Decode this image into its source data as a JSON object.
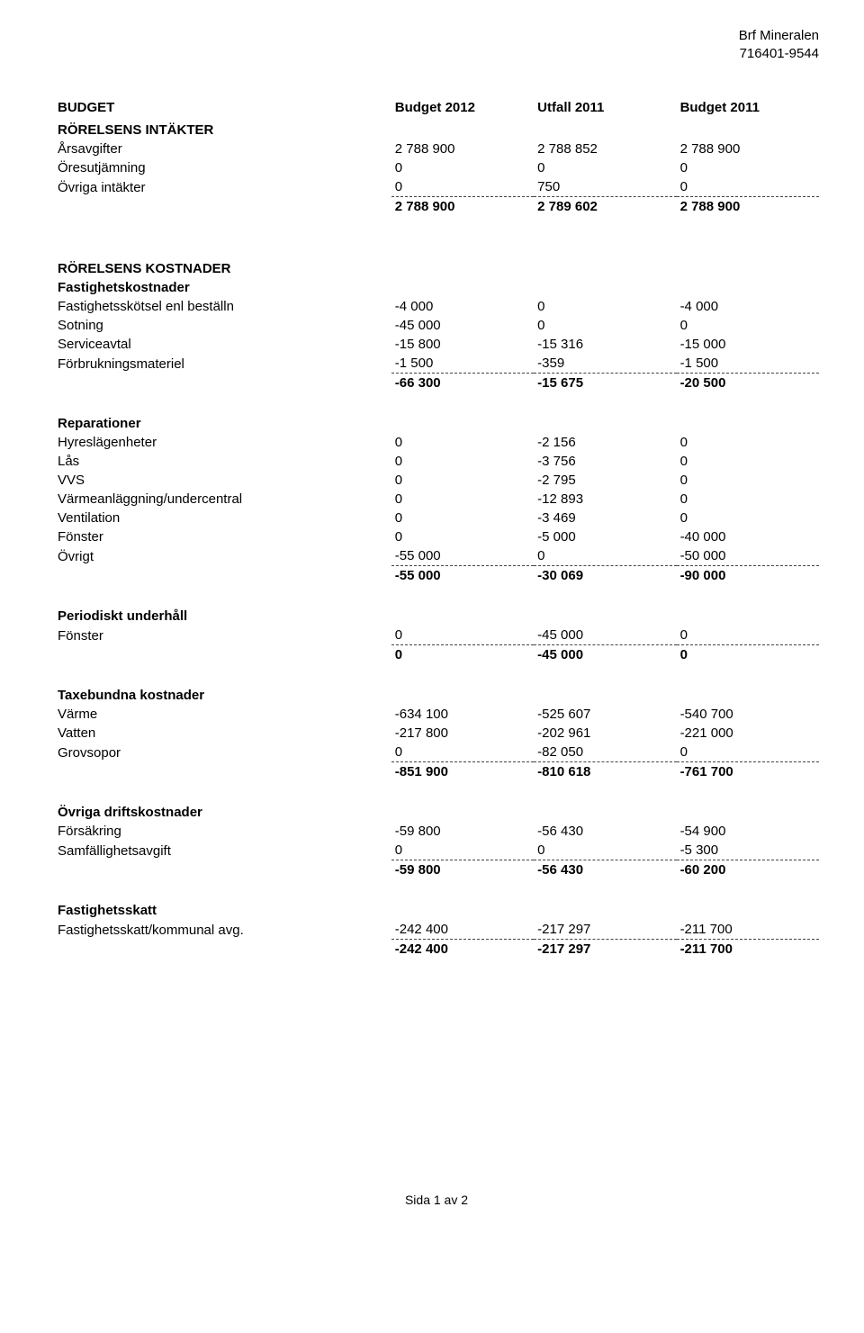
{
  "header": {
    "org": "Brf Mineralen",
    "orgno": "716401-9544"
  },
  "columns": {
    "c1": "Budget 2012",
    "c2": "Utfall 2011",
    "c3": "Budget 2011"
  },
  "title": "BUDGET",
  "intakter": {
    "heading": "RÖRELSENS INTÄKTER",
    "rows": [
      {
        "l": "Årsavgifter",
        "a": "2 788 900",
        "b": "2 788 852",
        "c": "2 788 900"
      },
      {
        "l": "Öresutjämning",
        "a": "0",
        "b": "0",
        "c": "0"
      },
      {
        "l": "Övriga intäkter",
        "a": "0",
        "b": "750",
        "c": "0"
      }
    ],
    "sum": {
      "a": "2 788 900",
      "b": "2 789 602",
      "c": "2 788 900"
    }
  },
  "kostnader_heading": "RÖRELSENS KOSTNADER",
  "fastighet": {
    "heading": "Fastighetskostnader",
    "rows": [
      {
        "l": "Fastighetsskötsel enl beställn",
        "a": "-4 000",
        "b": "0",
        "c": "-4 000"
      },
      {
        "l": "Sotning",
        "a": "-45 000",
        "b": "0",
        "c": "0"
      },
      {
        "l": "Serviceavtal",
        "a": "-15 800",
        "b": "-15 316",
        "c": "-15 000"
      },
      {
        "l": "Förbrukningsmateriel",
        "a": "-1 500",
        "b": "-359",
        "c": "-1 500"
      }
    ],
    "sum": {
      "a": "-66 300",
      "b": "-15 675",
      "c": "-20 500"
    }
  },
  "reparationer": {
    "heading": "Reparationer",
    "rows": [
      {
        "l": "Hyreslägenheter",
        "a": "0",
        "b": "-2 156",
        "c": "0"
      },
      {
        "l": "Lås",
        "a": "0",
        "b": "-3 756",
        "c": "0"
      },
      {
        "l": "VVS",
        "a": "0",
        "b": "-2 795",
        "c": "0"
      },
      {
        "l": "Värmeanläggning/undercentral",
        "a": "0",
        "b": "-12 893",
        "c": "0"
      },
      {
        "l": "Ventilation",
        "a": "0",
        "b": "-3 469",
        "c": "0"
      },
      {
        "l": "Fönster",
        "a": "0",
        "b": "-5 000",
        "c": "-40 000"
      },
      {
        "l": "Övrigt",
        "a": "-55 000",
        "b": "0",
        "c": "-50 000"
      }
    ],
    "sum": {
      "a": "-55 000",
      "b": "-30 069",
      "c": "-90 000"
    }
  },
  "periodiskt": {
    "heading": "Periodiskt underhåll",
    "rows": [
      {
        "l": "Fönster",
        "a": "0",
        "b": "-45 000",
        "c": "0"
      }
    ],
    "sum": {
      "a": "0",
      "b": "-45 000",
      "c": "0"
    }
  },
  "taxe": {
    "heading": "Taxebundna kostnader",
    "rows": [
      {
        "l": "Värme",
        "a": "-634 100",
        "b": "-525 607",
        "c": "-540 700"
      },
      {
        "l": "Vatten",
        "a": "-217 800",
        "b": "-202 961",
        "c": "-221 000"
      },
      {
        "l": "Grovsopor",
        "a": "0",
        "b": "-82 050",
        "c": "0"
      }
    ],
    "sum": {
      "a": "-851 900",
      "b": "-810 618",
      "c": "-761 700"
    }
  },
  "ovriga": {
    "heading": "Övriga driftskostnader",
    "rows": [
      {
        "l": "Försäkring",
        "a": "-59 800",
        "b": "-56 430",
        "c": "-54 900"
      },
      {
        "l": "Samfällighetsavgift",
        "a": "0",
        "b": "0",
        "c": "-5 300"
      }
    ],
    "sum": {
      "a": "-59 800",
      "b": "-56 430",
      "c": "-60 200"
    }
  },
  "skatt": {
    "heading": "Fastighetsskatt",
    "rows": [
      {
        "l": "Fastighetsskatt/kommunal avg.",
        "a": "-242 400",
        "b": "-217 297",
        "c": "-211 700"
      }
    ],
    "sum": {
      "a": "-242 400",
      "b": "-217 297",
      "c": "-211 700"
    }
  },
  "footer": {
    "page": "Sida 1 av 2"
  }
}
